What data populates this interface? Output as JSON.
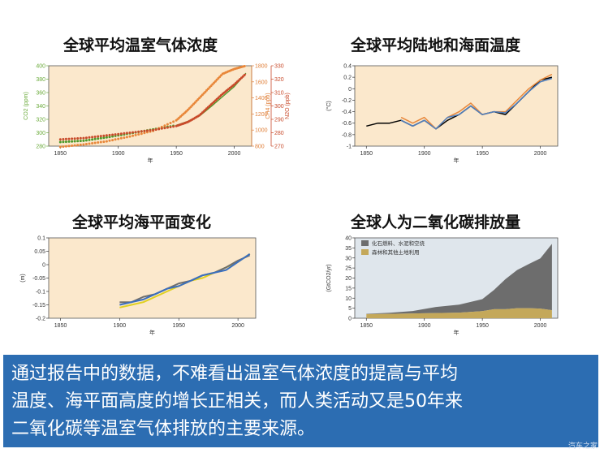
{
  "panels": {
    "ghg": {
      "title": "全球平均温室气体浓度"
    },
    "temp": {
      "title": "全球平均陆地和海面温度"
    },
    "sea": {
      "title": "全球平均海平面变化"
    },
    "co2": {
      "title": "全球人为二氧化碳排放量"
    }
  },
  "chart_data": [
    {
      "type": "scatter",
      "title": "全球平均温室气体浓度",
      "xlabel": "年",
      "xlim": [
        1840,
        2015
      ],
      "xticks": [
        1850,
        1900,
        1950,
        2000
      ],
      "axes": [
        {
          "label": "CO2 (ppm)",
          "color": "#6aaa3a",
          "ylim": [
            280,
            400
          ],
          "ticks": [
            280,
            300,
            320,
            340,
            360,
            380,
            400
          ]
        },
        {
          "label": "CH4 (ppb)",
          "color": "#e0803a",
          "ylim": [
            800,
            1800
          ],
          "ticks": [
            800,
            1000,
            1200,
            1400,
            1600,
            1800
          ]
        },
        {
          "label": "N2O (ppb)",
          "color": "#c84a2a",
          "ylim": [
            270,
            330
          ],
          "ticks": [
            270,
            280,
            290,
            300,
            310,
            320,
            330
          ]
        }
      ],
      "series": [
        {
          "axis": "CO2 (ppm)",
          "color": "#4a9a2a",
          "x": [
            1850,
            1870,
            1890,
            1910,
            1930,
            1950,
            1960,
            1970,
            1980,
            1990,
            2000,
            2010
          ],
          "y": [
            286,
            288,
            293,
            299,
            305,
            311,
            317,
            325,
            339,
            354,
            369,
            389
          ]
        },
        {
          "axis": "CH4 (ppb)",
          "color": "#e8873a",
          "x": [
            1850,
            1870,
            1890,
            1910,
            1930,
            1950,
            1960,
            1970,
            1980,
            1990,
            2000,
            2010
          ],
          "y": [
            790,
            820,
            860,
            920,
            990,
            1120,
            1250,
            1400,
            1550,
            1700,
            1760,
            1800
          ]
        },
        {
          "axis": "N2O (ppb)",
          "color": "#c84a2a",
          "x": [
            1850,
            1870,
            1890,
            1910,
            1930,
            1950,
            1960,
            1970,
            1980,
            1990,
            2000,
            2010
          ],
          "y": [
            275,
            276,
            278,
            280,
            282,
            285,
            288,
            293,
            301,
            309,
            316,
            324
          ]
        }
      ]
    },
    {
      "type": "line",
      "title": "全球平均陆地和海面温度",
      "xlabel": "年",
      "ylabel": "(°C)",
      "xlim": [
        1840,
        2015
      ],
      "ylim": [
        -1.0,
        0.4
      ],
      "xticks": [
        1850,
        1900,
        1950,
        2000
      ],
      "yticks": [
        -1.0,
        -0.8,
        -0.6,
        -0.4,
        -0.2,
        0.0,
        0.2,
        0.4
      ],
      "series": [
        {
          "color": "#000000",
          "x": [
            1850,
            1860,
            1870,
            1880,
            1890,
            1900,
            1910,
            1920,
            1930,
            1940,
            1950,
            1960,
            1970,
            1980,
            1990,
            2000,
            2010
          ],
          "y": [
            -0.65,
            -0.6,
            -0.6,
            -0.55,
            -0.65,
            -0.55,
            -0.7,
            -0.55,
            -0.45,
            -0.3,
            -0.45,
            -0.4,
            -0.45,
            -0.25,
            -0.05,
            0.15,
            0.2
          ]
        },
        {
          "color": "#e8873a",
          "x": [
            1880,
            1890,
            1900,
            1910,
            1920,
            1930,
            1940,
            1950,
            1960,
            1970,
            1980,
            1990,
            2000,
            2010
          ],
          "y": [
            -0.5,
            -0.6,
            -0.5,
            -0.7,
            -0.5,
            -0.4,
            -0.25,
            -0.45,
            -0.4,
            -0.4,
            -0.2,
            0.0,
            0.15,
            0.25
          ]
        },
        {
          "color": "#4f7fbf",
          "x": [
            1880,
            1890,
            1900,
            1910,
            1920,
            1930,
            1940,
            1950,
            1960,
            1970,
            1980,
            1990,
            2000,
            2010
          ],
          "y": [
            -0.55,
            -0.65,
            -0.55,
            -0.7,
            -0.5,
            -0.45,
            -0.3,
            -0.45,
            -0.4,
            -0.42,
            -0.25,
            -0.05,
            0.12,
            0.18
          ]
        }
      ]
    },
    {
      "type": "line",
      "title": "全球平均海平面变化",
      "xlabel": "年",
      "ylabel": "(m)",
      "xlim": [
        1840,
        2015
      ],
      "ylim": [
        -0.2,
        0.1
      ],
      "xticks": [
        1850,
        1900,
        1950,
        2000
      ],
      "yticks": [
        -0.2,
        -0.15,
        -0.1,
        -0.05,
        0.0,
        0.05,
        0.1
      ],
      "series": [
        {
          "color": "#e0d020",
          "x": [
            1900,
            1910,
            1920,
            1930,
            1940,
            1950,
            1960,
            1970,
            1980,
            1990,
            2000,
            2010
          ],
          "y": [
            -0.16,
            -0.15,
            -0.14,
            -0.12,
            -0.1,
            -0.08,
            -0.06,
            -0.05,
            -0.03,
            -0.01,
            0.01,
            0.04
          ]
        },
        {
          "color": "#6e6e6e",
          "x": [
            1900,
            1910,
            1920,
            1930,
            1940,
            1950,
            1960,
            1970,
            1980,
            1990,
            2000,
            2010
          ],
          "y": [
            -0.14,
            -0.14,
            -0.12,
            -0.11,
            -0.09,
            -0.07,
            -0.06,
            -0.04,
            -0.03,
            -0.01,
            0.015,
            0.035
          ]
        },
        {
          "color": "#3a6fbf",
          "x": [
            1900,
            1910,
            1920,
            1930,
            1940,
            1950,
            1960,
            1970,
            1980,
            1990,
            2000,
            2010
          ],
          "y": [
            -0.15,
            -0.14,
            -0.13,
            -0.11,
            -0.09,
            -0.08,
            -0.06,
            -0.04,
            -0.03,
            -0.02,
            0.01,
            0.04
          ]
        }
      ]
    },
    {
      "type": "area",
      "title": "全球人为二氧化碳排放量",
      "xlabel": "年",
      "ylabel": "(GtCO2/yr)",
      "xlim": [
        1840,
        2015
      ],
      "ylim": [
        0,
        40
      ],
      "xticks": [
        1850,
        1900,
        1950,
        2000
      ],
      "yticks": [
        0,
        5,
        10,
        15,
        20,
        25,
        30,
        35,
        40
      ],
      "series": [
        {
          "name": "化石燃料、水泥和空烧",
          "color": "#6d6d6d",
          "x": [
            1850,
            1870,
            1890,
            1910,
            1930,
            1950,
            1960,
            1970,
            1980,
            1990,
            2000,
            2010
          ],
          "y": [
            0.2,
            0.5,
            1.2,
            3.0,
            4.0,
            6.0,
            9.5,
            15,
            19,
            22,
            25,
            33
          ]
        },
        {
          "name": "森林和其他土地利用",
          "color": "#c4a85a",
          "x": [
            1850,
            1870,
            1890,
            1910,
            1930,
            1950,
            1960,
            1970,
            1980,
            1990,
            2000,
            2010
          ],
          "y": [
            2.0,
            2.2,
            2.4,
            2.6,
            2.8,
            3.5,
            4.5,
            4.5,
            5.0,
            5.0,
            4.8,
            4.0
          ]
        }
      ]
    }
  ],
  "banner": {
    "line1": "通过报告中的数据，不难看出温室气体浓度的提高与平均",
    "line2": "温度、海平面高度的增长正相关，而人类活动又是50年来",
    "line3": "二氧化碳等温室气体排放的主要来源。"
  },
  "watermark": "汽车之家"
}
